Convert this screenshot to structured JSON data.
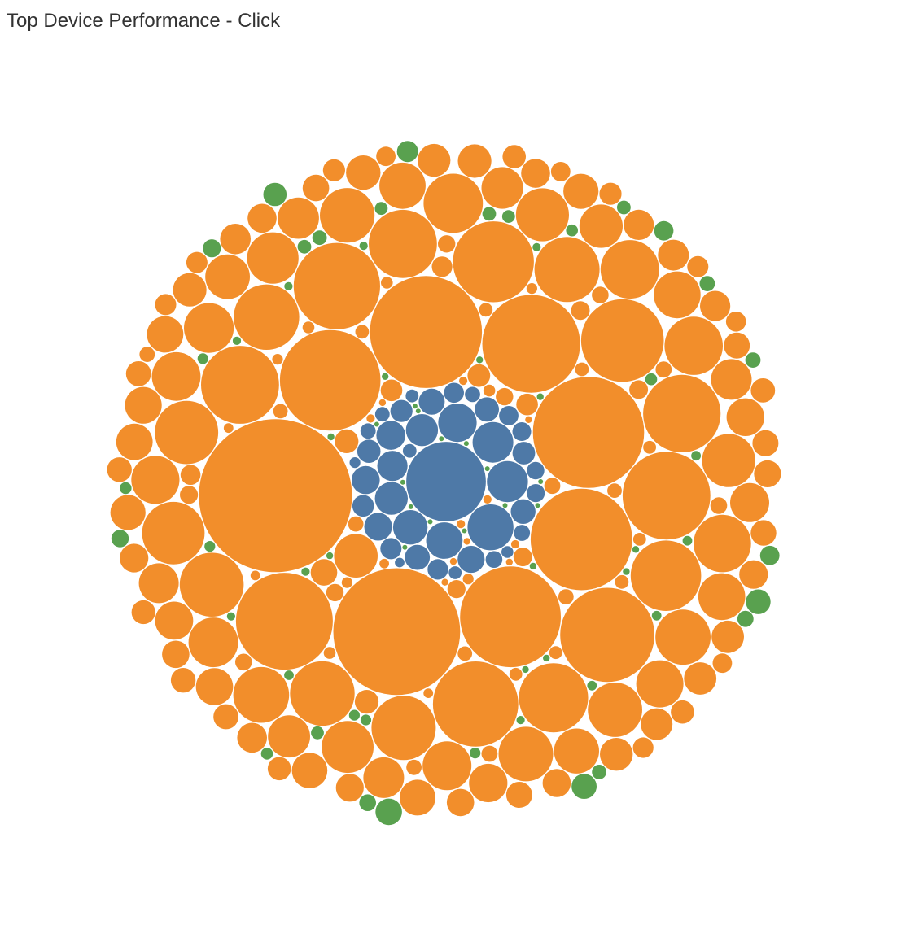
{
  "page": {
    "title": "Top Device Performance - Click"
  },
  "colors": {
    "blue_group": "#4e79a7",
    "orange_group": "#f28e2b",
    "green_group": "#59a14f"
  },
  "chart_data": {
    "type": "packed-bubble",
    "title": "Top Device Performance - Click",
    "legend": "none",
    "grid": false,
    "value_scale": "relative bubble area (largest orange bubble = 100)",
    "groups": [
      {
        "color": "#4e79a7",
        "values": [
          27.1,
          9.0,
          7.2,
          7.1,
          6.3,
          5.7,
          5.1,
          4.6,
          4.4,
          3.9,
          3.6,
          3.4,
          3.3,
          3.1,
          2.9,
          2.7,
          2.6,
          2.5,
          2.3,
          2.2,
          2.1,
          2.0,
          1.9,
          1.8,
          1.7,
          1.6,
          1.5,
          1.4,
          1.3,
          1.2,
          1.1,
          1.0,
          1.0,
          0.9,
          0.8,
          0.7,
          0.7,
          0.6,
          0.5,
          0.4
        ]
      },
      {
        "color": "#f28e2b",
        "values": [
          100,
          68.7,
          53.6,
          52.8,
          44.1,
          43.3,
          43.2,
          40.9,
          40.0,
          38.0,
          32.9,
          31.9,
          31.1,
          29.2,
          27.9,
          26.0,
          25.6,
          21.2,
          20.4,
          19.9,
          18.3,
          18.1,
          17.8,
          17.7,
          17.5,
          17.1,
          16.7,
          15.0,
          14.7,
          14.5,
          14.1,
          13.3,
          13.0,
          12.8,
          12.7,
          12.6,
          12.1,
          12.0,
          11.5,
          11.3,
          10.6,
          10.5,
          10.2,
          10.1,
          9.9,
          9.5,
          9.4,
          9.4,
          9.1,
          8.7,
          8.5,
          8.1,
          8.0,
          7.6,
          7.4,
          7.3,
          7.1,
          7.1,
          6.8,
          6.5,
          6.3,
          6.2,
          6.1,
          5.9,
          5.8,
          5.7,
          5.7,
          5.5,
          5.4,
          5.3,
          5.3,
          5.1,
          4.8,
          4.8,
          4.6,
          4.6,
          4.5,
          4.5,
          4.3,
          4.1,
          4.0,
          3.9,
          3.9,
          3.8,
          3.6,
          3.6,
          3.5,
          3.5,
          3.4,
          3.3,
          3.2,
          3.2,
          3.1,
          3.0,
          3.0,
          2.9,
          2.9,
          2.9,
          2.8,
          2.7,
          2.7,
          2.6,
          2.6,
          2.5,
          2.4,
          2.4,
          2.4,
          2.3,
          2.3,
          2.3,
          2.2,
          2.1,
          2.1,
          2.0,
          2.0,
          1.9,
          1.9,
          1.9,
          1.8,
          1.8,
          1.7,
          1.7,
          1.6,
          1.6,
          1.6,
          1.5,
          1.5,
          1.5,
          1.4,
          1.4,
          1.3,
          1.3,
          1.3,
          1.2,
          1.2,
          1.2,
          1.1,
          1.1,
          1.1,
          1.0,
          1.0,
          1.0,
          1.0,
          0.9,
          0.9,
          0.9,
          0.8,
          0.8,
          0.8,
          0.8,
          0.7,
          0.7,
          0.7,
          0.7,
          0.6,
          0.6,
          0.6,
          0.6,
          0.5,
          0.5,
          0.5,
          0.5,
          0.4,
          0.4,
          0.4,
          0.4,
          0.3,
          0.3,
          0.3,
          0.3,
          0.3,
          0.2,
          0.2,
          0.2,
          0.2,
          0.2,
          0.2
        ]
      },
      {
        "color": "#59a14f",
        "values": [
          3.0,
          2.7,
          2.6,
          2.3,
          1.9,
          1.6,
          1.6,
          1.4,
          1.3,
          1.2,
          1.1,
          1.0,
          1.0,
          0.9,
          0.9,
          0.8,
          0.8,
          0.8,
          0.7,
          0.7,
          0.7,
          0.6,
          0.6,
          0.6,
          0.6,
          0.5,
          0.5,
          0.5,
          0.5,
          0.5,
          0.4,
          0.4,
          0.4,
          0.4,
          0.4,
          0.3,
          0.3,
          0.3,
          0.3,
          0.3,
          0.3,
          0.3,
          0.2,
          0.2,
          0.2,
          0.2,
          0.2,
          0.2,
          0.2,
          0.2,
          0.2,
          0.2,
          0.1,
          0.1,
          0.1,
          0.1,
          0.1,
          0.1,
          0.1,
          0.1,
          0.1,
          0.1,
          0.1,
          0.1,
          0.1,
          0.1
        ]
      }
    ]
  }
}
